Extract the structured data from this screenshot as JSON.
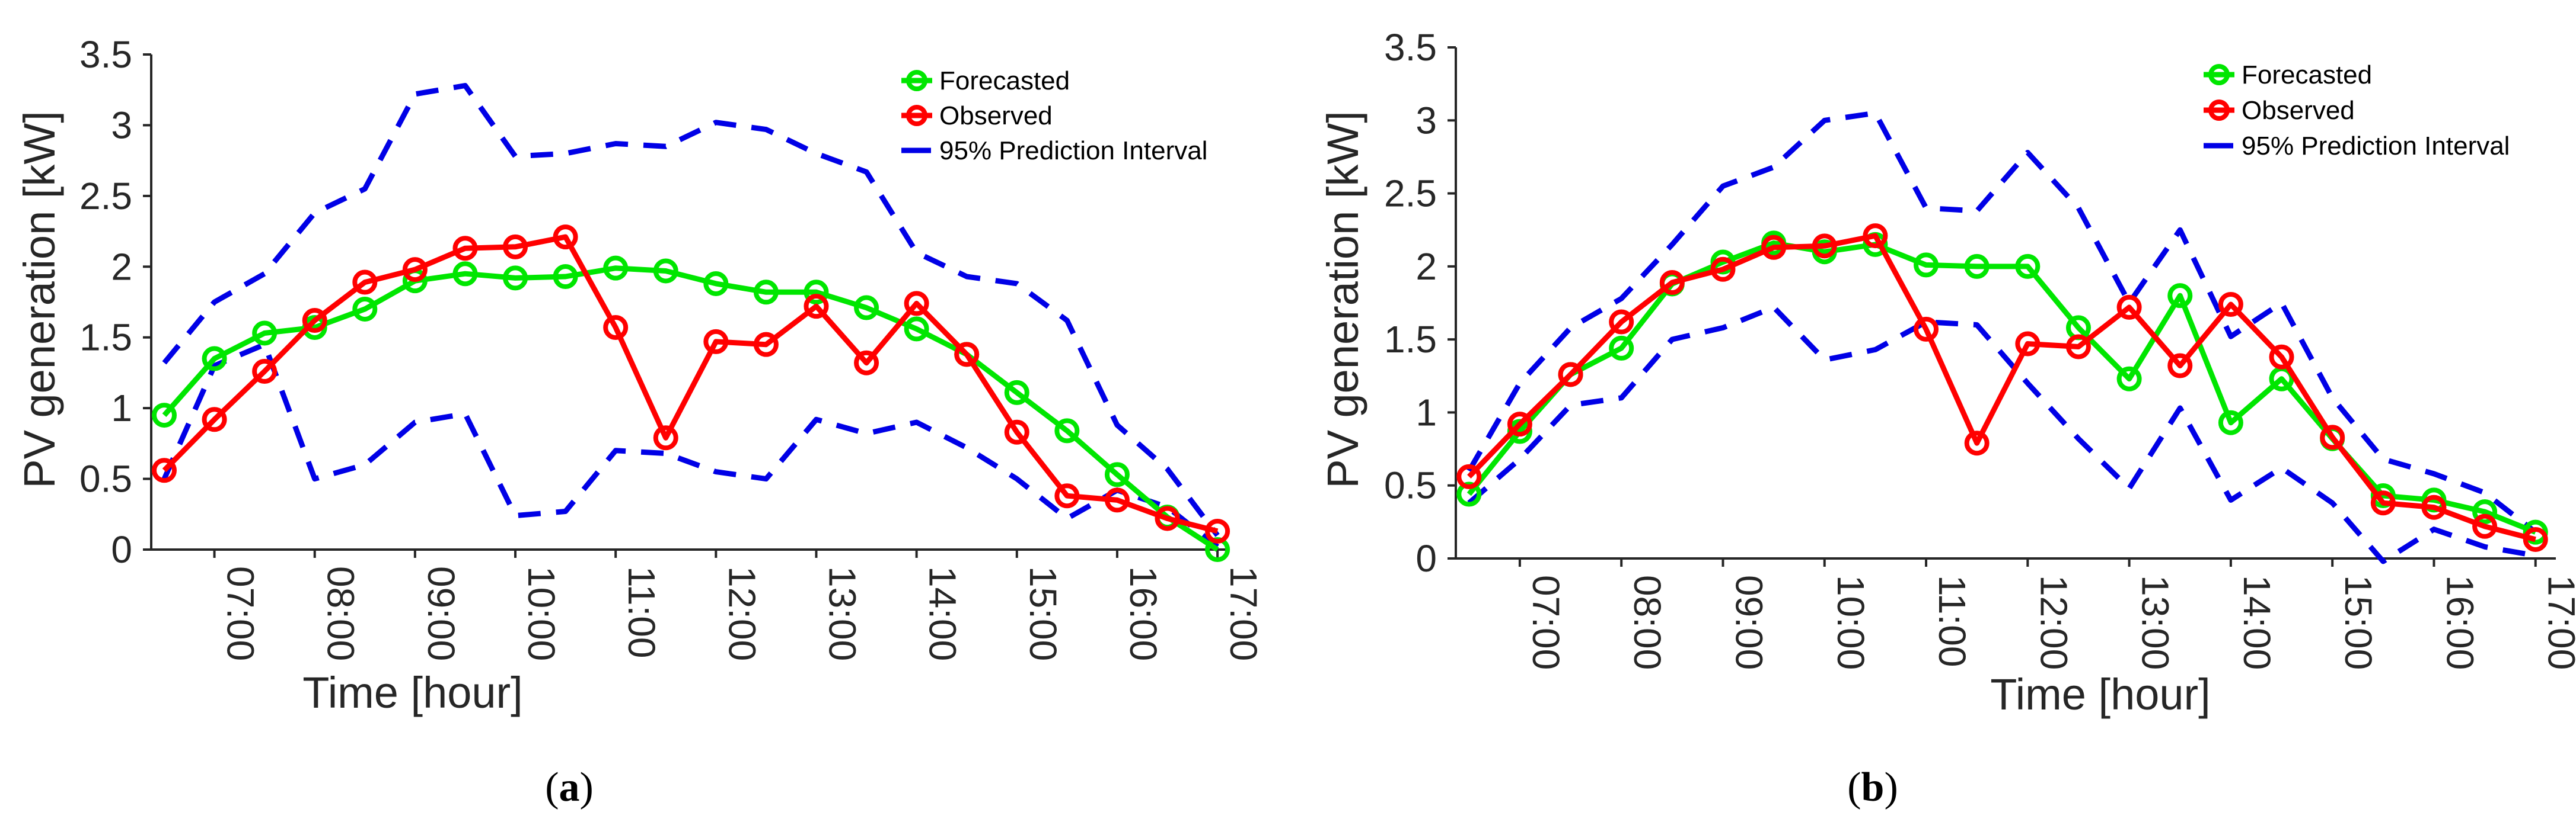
{
  "colors": {
    "forecasted": "#00e600",
    "observed": "#ff0000",
    "interval": "#0000e6",
    "axis": "#262626"
  },
  "chart_data": [
    {
      "type": "line",
      "panel_caption": "a",
      "xlabel": "Time [hour]",
      "ylabel": "PV generation [kW]",
      "ylim": [
        0,
        3.5
      ],
      "yticks": [
        0,
        0.5,
        1,
        1.5,
        2,
        2.5,
        3,
        3.5
      ],
      "ytick_labels": [
        "0",
        "0.5",
        "1",
        "1.5",
        "2",
        "2.5",
        "3",
        "3.5"
      ],
      "xlim": [
        6.37,
        17.1
      ],
      "xticks": [
        7,
        8,
        9,
        10,
        11,
        12,
        13,
        14,
        15,
        16,
        17
      ],
      "xtick_labels": [
        "07:00",
        "08:00",
        "09:00",
        "10:00",
        "11:00",
        "12:00",
        "13:00",
        "14:00",
        "15:00",
        "16:00",
        "17:00"
      ],
      "x": [
        6.5,
        7.0,
        7.5,
        8.0,
        8.5,
        9.0,
        9.5,
        10.0,
        10.5,
        11.0,
        11.5,
        12.0,
        12.5,
        13.0,
        13.5,
        14.0,
        14.5,
        15.0,
        15.5,
        16.0,
        16.5,
        17.0
      ],
      "legend": [
        "Forecasted",
        "Observed",
        "95% Prediction Interval"
      ],
      "series": [
        {
          "name": "Forecasted",
          "values": [
            0.95,
            1.35,
            1.53,
            1.57,
            1.7,
            1.9,
            1.95,
            1.92,
            1.93,
            1.99,
            1.97,
            1.88,
            1.82,
            1.82,
            1.71,
            1.56,
            1.38,
            1.11,
            0.84,
            0.53,
            0.23,
            0.0
          ]
        },
        {
          "name": "Observed",
          "values": [
            0.56,
            0.92,
            1.26,
            1.62,
            1.89,
            1.98,
            2.13,
            2.14,
            2.21,
            1.57,
            0.79,
            1.47,
            1.45,
            1.72,
            1.32,
            1.74,
            1.38,
            0.83,
            0.38,
            0.35,
            0.22,
            0.13
          ]
        },
        {
          "name": "95% Prediction Interval upper",
          "values": [
            1.32,
            1.75,
            1.95,
            2.38,
            2.55,
            3.22,
            3.28,
            2.78,
            2.8,
            2.87,
            2.85,
            3.02,
            2.97,
            2.8,
            2.67,
            2.1,
            1.93,
            1.88,
            1.62,
            0.88,
            0.57,
            0.1
          ]
        },
        {
          "name": "95% Prediction Interval lower",
          "values": [
            0.5,
            1.3,
            1.45,
            0.5,
            0.6,
            0.9,
            0.96,
            0.24,
            0.27,
            0.7,
            0.68,
            0.55,
            0.5,
            0.92,
            0.82,
            0.9,
            0.72,
            0.5,
            0.22,
            0.42,
            0.3,
            0.02
          ]
        }
      ]
    },
    {
      "type": "line",
      "panel_caption": "b",
      "xlabel": "Time [hour]",
      "ylabel": "PV generation [kW]",
      "ylim": [
        0,
        3.5
      ],
      "yticks": [
        0,
        0.5,
        1,
        1.5,
        2,
        2.5,
        3,
        3.5
      ],
      "ytick_labels": [
        "0",
        "0.5",
        "1",
        "1.5",
        "2",
        "2.5",
        "3",
        "3.5"
      ],
      "xlim": [
        6.37,
        17.2
      ],
      "xticks": [
        7,
        8,
        9,
        10,
        11,
        12,
        13,
        14,
        15,
        16,
        17
      ],
      "xtick_labels": [
        "07:00",
        "08:00",
        "09:00",
        "10:00",
        "11:00",
        "12:00",
        "13:00",
        "14:00",
        "15:00",
        "16:00",
        "17:00"
      ],
      "x": [
        6.5,
        7.0,
        7.5,
        8.0,
        8.5,
        9.0,
        9.5,
        10.0,
        10.5,
        11.0,
        11.5,
        12.0,
        12.5,
        13.0,
        13.5,
        14.0,
        14.5,
        15.0,
        15.5,
        16.0,
        16.5,
        17.0
      ],
      "legend": [
        "Forecasted",
        "Observed",
        "95% Prediction Interval"
      ],
      "series": [
        {
          "name": "Forecasted",
          "values": [
            0.44,
            0.87,
            1.26,
            1.44,
            1.88,
            2.03,
            2.16,
            2.1,
            2.15,
            2.01,
            2.0,
            2.0,
            1.58,
            1.23,
            1.8,
            0.93,
            1.23,
            0.82,
            0.43,
            0.4,
            0.32,
            0.18
          ]
        },
        {
          "name": "Observed",
          "values": [
            0.56,
            0.92,
            1.26,
            1.62,
            1.89,
            1.98,
            2.13,
            2.14,
            2.21,
            1.57,
            0.79,
            1.47,
            1.45,
            1.72,
            1.32,
            1.74,
            1.38,
            0.83,
            0.38,
            0.35,
            0.22,
            0.13
          ]
        },
        {
          "name": "95% Prediction Interval upper",
          "values": [
            0.6,
            1.2,
            1.58,
            1.78,
            2.15,
            2.55,
            2.68,
            3.0,
            3.05,
            2.4,
            2.38,
            2.78,
            2.4,
            1.75,
            2.25,
            1.52,
            1.75,
            1.1,
            0.68,
            0.58,
            0.45,
            0.18
          ]
        },
        {
          "name": "95% Prediction Interval lower",
          "values": [
            0.38,
            0.68,
            1.05,
            1.1,
            1.5,
            1.58,
            1.72,
            1.36,
            1.43,
            1.62,
            1.6,
            1.2,
            0.82,
            0.48,
            1.03,
            0.4,
            0.62,
            0.38,
            -0.02,
            0.2,
            0.08,
            0.02
          ]
        }
      ]
    }
  ]
}
